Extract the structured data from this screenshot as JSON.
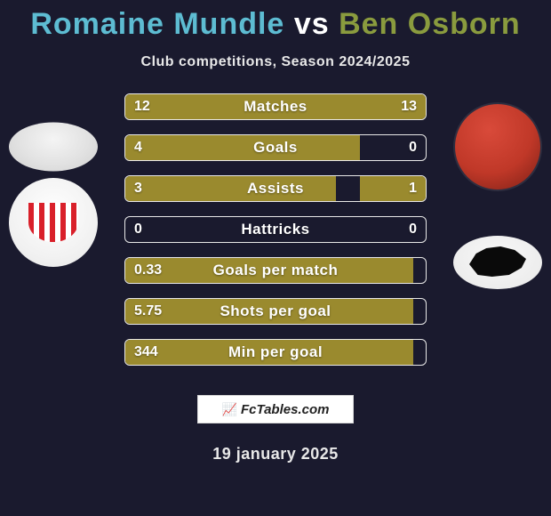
{
  "title": {
    "player1": "Romaine Mundle",
    "vs": "vs",
    "player2": "Ben Osborn",
    "player1_color": "#5dbcd2",
    "player2_color": "#8a9b3e"
  },
  "subtitle": "Club competitions, Season 2024/2025",
  "colors": {
    "bar_left_fill": "#9a8a2e",
    "bar_right_fill": "#9a8a2e",
    "bar_border": "#e8e8e8",
    "background": "#1a1a2e"
  },
  "bars": [
    {
      "label": "Matches",
      "left": "12",
      "right": "13",
      "left_pct": 48,
      "right_pct": 52
    },
    {
      "label": "Goals",
      "left": "4",
      "right": "0",
      "left_pct": 78,
      "right_pct": 0
    },
    {
      "label": "Assists",
      "left": "3",
      "right": "1",
      "left_pct": 70,
      "right_pct": 22
    },
    {
      "label": "Hattricks",
      "left": "0",
      "right": "0",
      "left_pct": 0,
      "right_pct": 0
    },
    {
      "label": "Goals per match",
      "left": "0.33",
      "right": "",
      "left_pct": 96,
      "right_pct": 0
    },
    {
      "label": "Shots per goal",
      "left": "5.75",
      "right": "",
      "left_pct": 96,
      "right_pct": 0
    },
    {
      "label": "Min per goal",
      "left": "344",
      "right": "",
      "left_pct": 96,
      "right_pct": 0
    }
  ],
  "footer_brand": "FcTables.com",
  "date": "19 january 2025"
}
